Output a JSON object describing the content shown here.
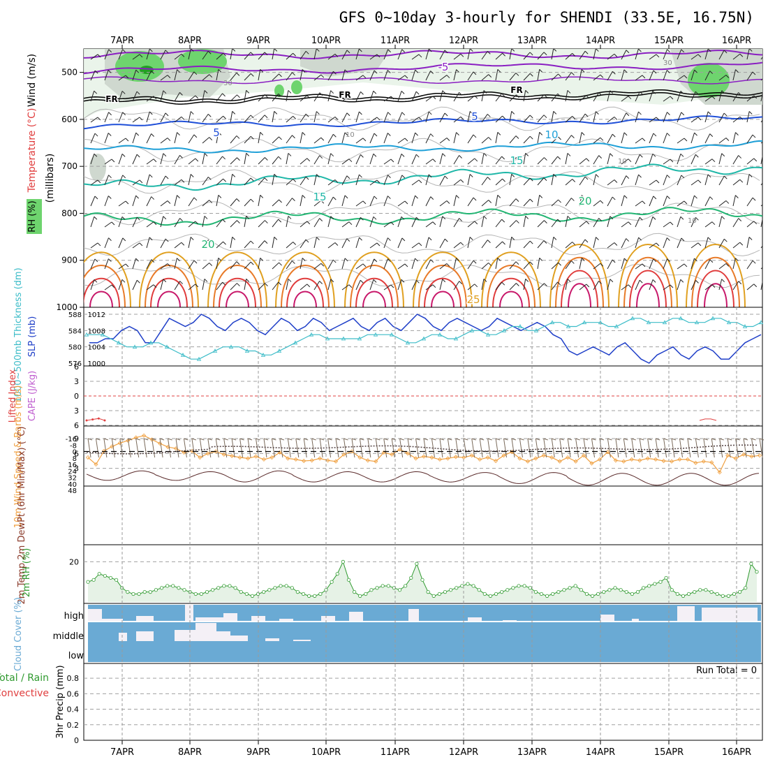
{
  "title": "GFS 0~10day 3-hourly for SHENDI (33.5E, 16.75N)",
  "dates": [
    "7APR",
    "8APR",
    "9APR",
    "10APR",
    "11APR",
    "12APR",
    "13APR",
    "14APR",
    "15APR",
    "16APR"
  ],
  "colors": {
    "temp_purple": "#8a1fc2",
    "temp_blue": "#1f4fd8",
    "temp_cyan": "#1fa0d8",
    "temp_teal": "#1fb7a8",
    "temp_green": "#22b573",
    "temp_orange": "#e0a020",
    "temp_red": "#e03c3c",
    "rh_green": "#6ed46e",
    "slp_blue": "#1f3fc8",
    "thick_cyan": "#3cbcc8",
    "wind_orange": "#f0a040",
    "rh2m_green": "#2f9a2f",
    "cloud_blue": "#6aaad4",
    "lifted_red": "#e04040"
  },
  "chart_data": [
    {
      "name": "upper-air",
      "type": "heatmap",
      "ylabel_parts": [
        "Wind (m/s)",
        "Temperature (°C)",
        "RH (%)"
      ],
      "yaxis_label": "(millibars)",
      "ylim": [
        1000,
        450
      ],
      "yticks": [
        500,
        600,
        700,
        800,
        900,
        1000
      ],
      "isotherms": [
        {
          "label": "-5",
          "level": 500,
          "color": "#8a1fc2"
        },
        {
          "label": "FR",
          "level": 550,
          "color": "#000000"
        },
        {
          "label": "5",
          "level": 595,
          "color": "#1f4fd8"
        },
        {
          "label": "10",
          "level": 650,
          "color": "#1fa0d8"
        },
        {
          "label": "15",
          "level": 705,
          "color": "#1fb7a8"
        },
        {
          "label": "20",
          "level": 800,
          "color": "#22b573"
        },
        {
          "label": "25",
          "level": 950,
          "color": "#e0a020"
        }
      ],
      "rh_labels": [
        "30",
        "10"
      ]
    },
    {
      "name": "slp-thickness",
      "type": "line",
      "ylabel_left": "1000~500mb Thickness (dm)",
      "ylabel_right": "SLP (mb)",
      "thickness_ticks": [
        576,
        580,
        584,
        588
      ],
      "slp_ticks": [
        1000,
        1004,
        1008,
        1012
      ],
      "slp_values": [
        1005,
        1005,
        1006,
        1006,
        1008,
        1009,
        1008,
        1005,
        1005,
        1008,
        1011,
        1010,
        1009,
        1010,
        1012,
        1011,
        1009,
        1008,
        1010,
        1011,
        1010,
        1008,
        1007,
        1009,
        1011,
        1010,
        1008,
        1009,
        1011,
        1010,
        1008,
        1009,
        1010,
        1011,
        1009,
        1008,
        1010,
        1011,
        1009,
        1008,
        1010,
        1012,
        1011,
        1009,
        1008,
        1010,
        1011,
        1010,
        1009,
        1008,
        1009,
        1011,
        1010,
        1009,
        1008,
        1009,
        1010,
        1009,
        1007,
        1006,
        1003,
        1002,
        1003,
        1004,
        1003,
        1002,
        1004,
        1005,
        1003,
        1001,
        1000,
        1002,
        1003,
        1004,
        1002,
        1001,
        1003,
        1004,
        1003,
        1001,
        1001,
        1003,
        1005,
        1006,
        1007
      ],
      "thickness_values": [
        583,
        583,
        583,
        582,
        581,
        580,
        580,
        580,
        581,
        581,
        580,
        579,
        578,
        577,
        577,
        578,
        579,
        580,
        580,
        580,
        579,
        579,
        578,
        578,
        579,
        580,
        581,
        582,
        583,
        583,
        582,
        582,
        582,
        582,
        582,
        583,
        583,
        583,
        583,
        582,
        581,
        581,
        582,
        583,
        583,
        582,
        582,
        583,
        584,
        584,
        583,
        583,
        584,
        585,
        585,
        584,
        584,
        585,
        586,
        586,
        585,
        585,
        586,
        586,
        586,
        585,
        585,
        586,
        587,
        587,
        586,
        586,
        586,
        587,
        587,
        586,
        586,
        586,
        587,
        587,
        586,
        586,
        585,
        585,
        586
      ]
    },
    {
      "name": "cape-lifted",
      "type": "line",
      "ylabel_left": "Lifted Index",
      "ylabel_right": "CAPE (J/kg)",
      "yticks": [
        "-6",
        "-3",
        "0",
        "3",
        "6"
      ],
      "lifted_values_day1": [
        5,
        4.8,
        4.6,
        5
      ],
      "lifted_values_day9": [
        5,
        4.7,
        4.7,
        5
      ]
    },
    {
      "name": "wind10m",
      "type": "line",
      "ylabel": "10m Wind Speed & Barbs (m/s)",
      "yticks": [
        3,
        6,
        9
      ],
      "values": [
        5.2,
        3.8,
        6.5,
        7.4,
        8.1,
        8.6,
        9.2,
        9.6,
        8.8,
        8.0,
        7.3,
        7.0,
        6.2,
        6.5,
        5.2,
        6.0,
        6.4,
        5.8,
        5.5,
        5.2,
        5.0,
        5.4,
        4.8,
        5.2,
        6.2,
        5.0,
        4.8,
        4.5,
        4.6,
        5.0,
        4.6,
        4.4,
        5.8,
        6.4,
        5.2,
        4.6,
        4.4,
        6.2,
        5.8,
        6.8,
        6.0,
        5.0,
        5.4,
        5.2,
        4.8,
        5.0,
        5.3,
        5.2,
        5.6,
        4.8,
        5.2,
        4.5,
        5.6,
        6.3,
        5.0,
        4.4,
        5.0,
        5.6,
        5.2,
        4.4,
        5.2,
        4.4,
        5.6,
        4.0,
        4.8,
        6.3,
        4.6,
        4.4,
        4.8,
        4.6,
        5.0,
        4.8,
        4.5,
        4.4,
        4.8,
        4.8,
        4.1,
        4.4,
        4.2,
        2.2,
        5.6,
        5.0,
        5.8,
        5.4,
        5.6
      ]
    },
    {
      "name": "temp2m",
      "type": "area",
      "ylabel": "2m Temp 2m DewPt (6hr Min/Max) (°C)",
      "yticks": [
        "48",
        "40",
        "32",
        "24",
        "16",
        "8",
        "0",
        "-8",
        "-16"
      ],
      "temp_max": [
        36,
        36,
        38,
        38,
        38,
        38,
        40,
        42,
        42
      ],
      "temp_min": [
        24,
        25,
        24,
        25,
        25,
        26,
        26,
        27,
        27
      ]
    },
    {
      "name": "rh2m",
      "type": "line",
      "ylabel": "2m RH (%)",
      "yticks": [
        20
      ],
      "values": [
        10,
        11,
        14,
        13,
        12,
        11,
        7,
        5,
        4,
        4,
        5,
        5,
        6,
        7,
        8,
        8,
        7,
        6,
        5,
        4,
        4,
        5,
        6,
        7,
        8,
        8,
        7,
        5,
        4,
        3,
        4,
        5,
        6,
        7,
        8,
        8,
        7,
        5,
        4,
        3,
        3,
        4,
        6,
        10,
        14,
        20,
        11,
        5,
        3,
        4,
        6,
        7,
        8,
        8,
        7,
        6,
        8,
        12,
        19,
        11,
        5,
        3,
        4,
        5,
        6,
        7,
        8,
        9,
        8,
        6,
        4,
        3,
        4,
        5,
        6,
        7,
        8,
        8,
        7,
        5,
        4,
        3,
        4,
        5,
        6,
        7,
        8,
        6,
        4,
        3,
        4,
        5,
        6,
        7,
        6,
        5,
        4,
        5,
        7,
        8,
        9,
        10,
        12,
        6,
        4,
        3,
        4,
        5,
        6,
        6,
        5,
        4,
        3,
        3,
        4,
        5,
        7,
        19,
        15
      ]
    },
    {
      "name": "cloud",
      "type": "table",
      "ylabel": "Cloud Cover (%)",
      "levels": [
        "high",
        "middle",
        "low"
      ]
    },
    {
      "name": "precip",
      "type": "bar",
      "ylabel_left": "Total / Rain",
      "ylabel_right": "Convective",
      "ylabel_axis": "3hr Precip (mm)",
      "yticks": [
        "0",
        "0.2",
        "0.4",
        "0.6",
        "0.8"
      ],
      "ylim": [
        0,
        0.9
      ],
      "run_total": "Run Total = 0",
      "values": []
    }
  ]
}
